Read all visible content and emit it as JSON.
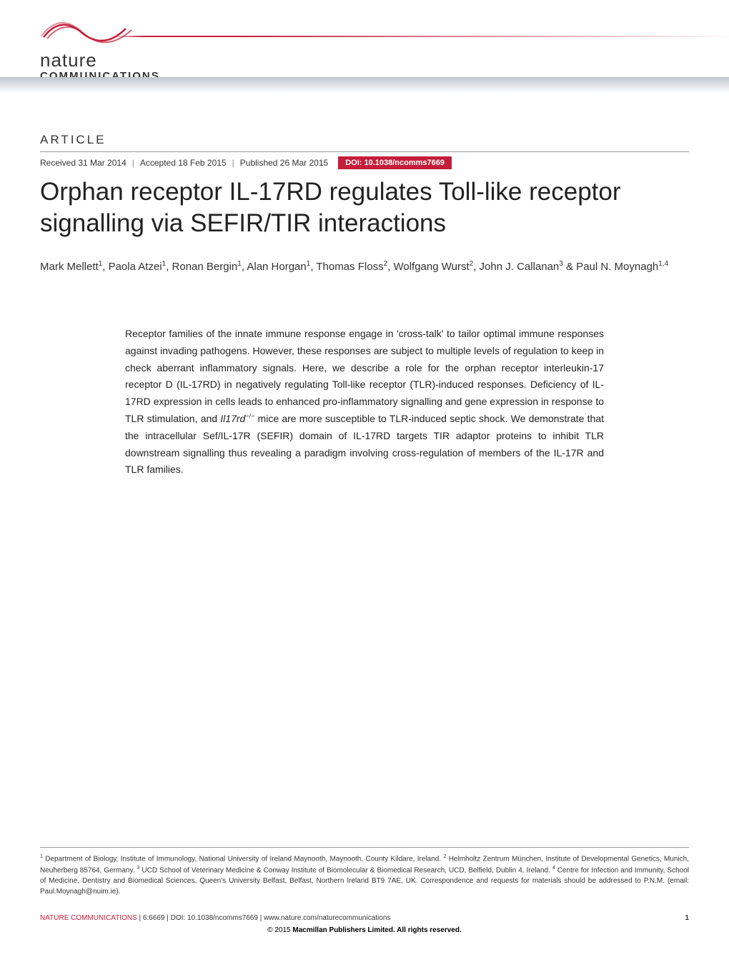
{
  "branding": {
    "logo_line1": "nature",
    "logo_line2": "COMMUNICATIONS",
    "swoosh_color": "#c41e3a",
    "gradient_top": "#c0c6cc",
    "gradient_bottom": "#ffffff"
  },
  "header": {
    "article_label": "ARTICLE",
    "received": "Received 31 Mar 2014",
    "accepted": "Accepted 18 Feb 2015",
    "published": "Published 26 Mar 2015",
    "doi_badge": "DOI: 10.1038/ncomms7669",
    "doi_bg": "#c41e3a"
  },
  "title": "Orphan receptor IL-17RD regulates Toll-like receptor signalling via SEFIR/TIR interactions",
  "authors_html": "Mark Mellett<sup>1</sup>, Paola Atzei<sup>1</sup>, Ronan Bergin<sup>1</sup>, Alan Horgan<sup>1</sup>, Thomas Floss<sup>2</sup>, Wolfgang Wurst<sup>2</sup>, John J. Callanan<sup>3</sup> & Paul N. Moynagh<sup>1,4</sup>",
  "abstract_html": "Receptor families of the innate immune response engage in 'cross-talk' to tailor optimal immune responses against invading pathogens. However, these responses are subject to multiple levels of regulation to keep in check aberrant inflammatory signals. Here, we describe a role for the orphan receptor interleukin-17 receptor D (IL-17RD) in negatively regulating Toll-like receptor (TLR)-induced responses. Deficiency of IL-17RD expression in cells leads to enhanced pro-inflammatory signalling and gene expression in response to TLR stimulation, and <span class=\"italic\">Il17rd</span><sup class=\"minus\">−/−</sup> mice are more susceptible to TLR-induced septic shock. We demonstrate that the intracellular Sef/IL-17R (SEFIR) domain of IL-17RD targets TIR adaptor proteins to inhibit TLR downstream signalling thus revealing a paradigm involving cross-regulation of members of the IL-17R and TLR families.",
  "affiliations_html": "<sup>1</sup> Department of Biology, Institute of Immunology, National University of Ireland Maynooth, Maynooth, County Kildare, Ireland. <sup>2</sup> Helmholtz Zentrum München, Institute of Developmental Genetics, Munich, Neuherberg 85764, Germany. <sup>3</sup> UCD School of Veterinary Medicine & Conway Institute of Biomolecular & Biomedical Research, UCD, Belfield, Dublin 4, Ireland. <sup>4</sup> Centre for Infection and Immunity, School of Medicine, Dentistry and Biomedical Sciences, Queen's University Belfast, Belfast, Northern Ireland BT9 7AE, UK. Correspondence and requests for materials should be addressed to P.N.M. (email: Paul.Moynagh@nuim.ie).",
  "footer": {
    "citation_red": "NATURE COMMUNICATIONS",
    "citation_black": " | 6:6669 | DOI: 10.1038/ncomms7669 | www.nature.com/naturecommunications",
    "page_number": "1",
    "copyright": "© 2015 ",
    "copyright_bold": "Macmillan Publishers Limited. All rights reserved."
  },
  "typography": {
    "title_fontsize": 35,
    "title_weight": 300,
    "body_fontsize": 14,
    "authors_fontsize": 15,
    "affil_fontsize": 10
  },
  "colors": {
    "brand_red": "#c41e3a",
    "text": "#222222",
    "muted": "#888888",
    "rule": "#999999",
    "background": "#ffffff"
  }
}
